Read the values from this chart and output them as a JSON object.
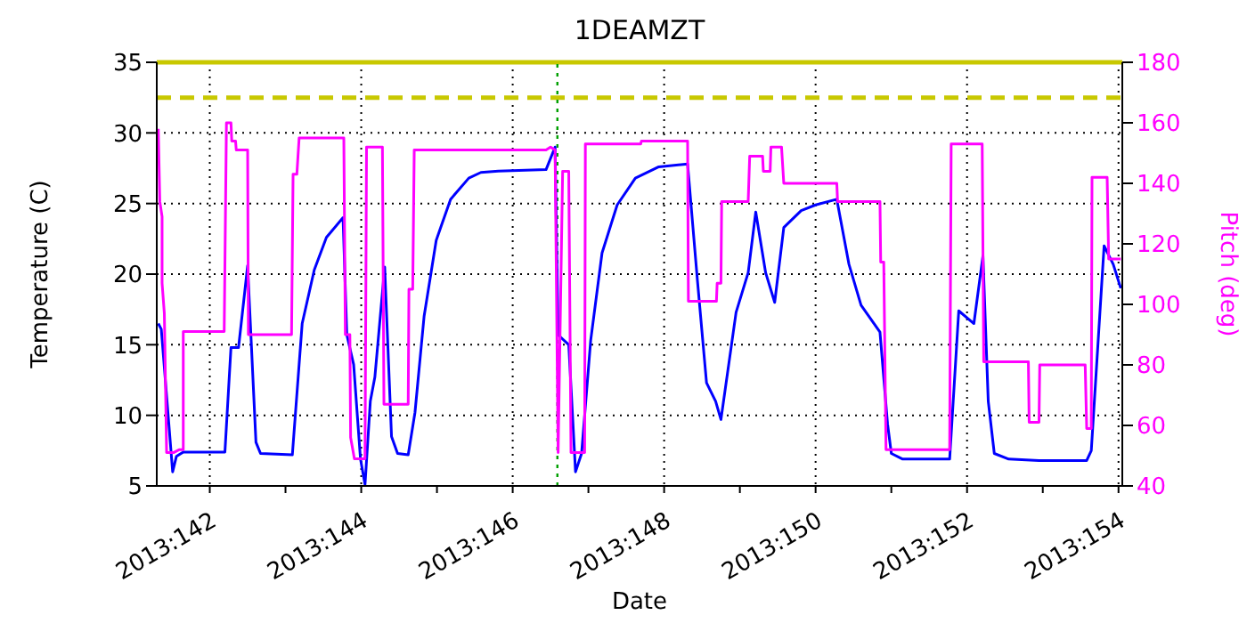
{
  "chart_data": {
    "type": "line",
    "title": "1DEAMZT",
    "xlabel": "Date",
    "ylabel": "Temperature (C)",
    "y2label": "Pitch (deg)",
    "xlim": [
      "2013-05-21T07:12",
      "2013-06-03T01:12"
    ],
    "xticks": [
      {
        "value": "2013-05-22",
        "label": "2013:142"
      },
      {
        "value": "2013-05-23",
        "label": null
      },
      {
        "value": "2013-05-24",
        "label": "2013:144"
      },
      {
        "value": "2013-05-25",
        "label": null
      },
      {
        "value": "2013-05-26",
        "label": "2013:146"
      },
      {
        "value": "2013-05-27",
        "label": null
      },
      {
        "value": "2013-05-28",
        "label": "2013:148"
      },
      {
        "value": "2013-05-29",
        "label": null
      },
      {
        "value": "2013-05-30",
        "label": "2013:150"
      },
      {
        "value": "2013-05-31",
        "label": null
      },
      {
        "value": "2013-06-01",
        "label": "2013:152"
      },
      {
        "value": "2013-06-02",
        "label": null
      },
      {
        "value": "2013-06-03",
        "label": "2013:154"
      }
    ],
    "ylim": [
      5,
      35
    ],
    "yticks": [
      5,
      10,
      15,
      20,
      25,
      30,
      35
    ],
    "y2lim": [
      40,
      180
    ],
    "y2ticks": [
      40,
      60,
      80,
      100,
      120,
      140,
      160,
      180
    ],
    "grid": true,
    "legend": false,
    "marker": "none",
    "line_style": "solid",
    "ref_lines": [
      {
        "axis": "y",
        "value": 35,
        "color": "#c8c800",
        "line_style": "solid"
      },
      {
        "axis": "y",
        "value": 32.5,
        "color": "#c8c800",
        "line_style": "dashed"
      },
      {
        "axis": "x",
        "value": "2013-05-26T14:10",
        "color": "#00a000",
        "line_style": "dotted"
      }
    ],
    "series": [
      {
        "color": "#0000ff",
        "x": [
          "2013-05-21T07:41",
          "2013-05-21T08:38",
          "2013-05-21T12:14",
          "2013-05-21T13:26",
          "2013-05-21T15:36",
          "2013-05-22T04:48",
          "2013-05-22T06:43",
          "2013-05-22T09:07",
          "2013-05-22T12:00",
          "2013-05-22T14:38",
          "2013-05-22T16:05",
          "2013-05-23T02:10",
          "2013-05-23T05:17",
          "2013-05-23T09:07",
          "2013-05-23T12:58",
          "2013-05-23T18:14",
          "2013-05-23T19:26",
          "2013-05-23T21:36",
          "2013-05-23T23:46",
          "2013-05-24T01:12",
          "2013-05-24T02:53",
          "2013-05-24T04:19",
          "2013-05-24T07:26",
          "2013-05-24T09:36",
          "2013-05-24T11:31",
          "2013-05-24T14:53",
          "2013-05-24T17:02",
          "2013-05-24T19:55",
          "2013-05-24T23:46",
          "2013-05-25T04:19",
          "2013-05-25T10:05",
          "2013-05-25T13:55",
          "2013-05-25T19:26",
          "2013-05-26T10:34",
          "2013-05-26T13:26",
          "2013-05-26T14:24",
          "2013-05-26T17:46",
          "2013-05-26T19:55",
          "2013-05-26T21:50",
          "2013-05-27T00:43",
          "2013-05-27T04:19",
          "2013-05-27T09:07",
          "2013-05-27T14:53",
          "2013-05-27T22:19",
          "2013-05-28T07:26",
          "2013-05-28T10:34",
          "2013-05-28T13:26",
          "2013-05-28T16:19",
          "2013-05-28T18:00",
          "2013-05-28T22:48",
          "2013-05-29T02:38",
          "2013-05-29T05:02",
          "2013-05-29T08:10",
          "2013-05-29T11:02",
          "2013-05-29T13:55",
          "2013-05-29T19:26",
          "2013-05-30T00:00",
          "2013-05-30T06:43",
          "2013-05-30T10:34",
          "2013-05-30T14:24",
          "2013-05-30T20:24",
          "2013-05-30T22:48",
          "2013-05-31T00:00",
          "2013-05-31T03:36",
          "2013-05-31T18:29",
          "2013-05-31T21:22",
          "2013-06-01T02:10",
          "2013-06-01T05:02",
          "2013-06-01T06:43",
          "2013-06-01T08:38",
          "2013-06-01T13:12",
          "2013-06-01T22:48",
          "2013-06-02T13:55",
          "2013-06-02T15:22",
          "2013-06-02T19:26",
          "2013-06-02T22:19",
          "2013-06-03T00:43"
        ],
        "values": [
          16.5,
          16.1,
          6.0,
          7.1,
          7.4,
          7.4,
          14.8,
          14.8,
          20.6,
          8.1,
          7.3,
          7.2,
          16.5,
          20.3,
          22.6,
          24.0,
          15.7,
          13.6,
          6.9,
          5.1,
          11.0,
          12.7,
          20.5,
          8.5,
          7.3,
          7.2,
          10.2,
          17.0,
          22.4,
          25.3,
          26.8,
          27.2,
          27.3,
          27.4,
          29.0,
          15.7,
          15.0,
          6.0,
          7.3,
          15.3,
          21.5,
          24.9,
          26.8,
          27.6,
          27.8,
          19.5,
          12.3,
          11.0,
          9.7,
          17.3,
          20.1,
          24.4,
          20.1,
          18.0,
          23.3,
          24.5,
          24.9,
          25.3,
          20.7,
          17.8,
          15.9,
          9.4,
          7.3,
          6.9,
          6.9,
          17.4,
          16.5,
          21.3,
          11.0,
          7.3,
          6.9,
          6.8,
          6.8,
          7.5,
          22.0,
          20.7,
          19.0
        ]
      },
      {
        "color": "#ff00ff",
        "axis": "y2",
        "x": [
          "2013-05-21T07:41",
          "2013-05-21T08:10",
          "2013-05-21T08:53",
          "2013-05-21T08:53",
          "2013-05-21T09:36",
          "2013-05-21T10:19",
          "2013-05-21T12:29",
          "2013-05-21T14:24",
          "2013-05-21T15:36",
          "2013-05-21T15:36",
          "2013-05-22T04:34",
          "2013-05-22T05:17",
          "2013-05-22T06:43",
          "2013-05-22T06:58",
          "2013-05-22T08:10",
          "2013-05-22T08:24",
          "2013-05-22T12:00",
          "2013-05-22T12:14",
          "2013-05-23T01:55",
          "2013-05-23T02:24",
          "2013-05-23T03:36",
          "2013-05-23T04:19",
          "2013-05-23T18:29",
          "2013-05-23T18:58",
          "2013-05-23T20:24",
          "2013-05-23T20:38",
          "2013-05-23T21:50",
          "2013-05-24T01:12",
          "2013-05-24T01:41",
          "2013-05-24T06:43",
          "2013-05-24T07:12",
          "2013-05-24T14:53",
          "2013-05-24T15:07",
          "2013-05-24T16:19",
          "2013-05-24T16:48",
          "2013-05-26T10:34",
          "2013-05-26T12:00",
          "2013-05-26T13:26",
          "2013-05-26T14:24",
          "2013-05-26T15:50",
          "2013-05-26T17:46",
          "2013-05-26T18:29",
          "2013-05-26T22:48",
          "2013-05-26T23:02",
          "2013-05-27T16:34",
          "2013-05-27T16:48",
          "2013-05-28T07:26",
          "2013-05-28T07:41",
          "2013-05-28T16:34",
          "2013-05-28T16:48",
          "2013-05-28T18:00",
          "2013-05-28T18:14",
          "2013-05-29T02:38",
          "2013-05-29T03:07",
          "2013-05-29T07:12",
          "2013-05-29T07:26",
          "2013-05-29T09:36",
          "2013-05-29T09:50",
          "2013-05-29T13:12",
          "2013-05-29T13:55",
          "2013-05-30T06:43",
          "2013-05-30T06:58",
          "2013-05-30T20:24",
          "2013-05-30T20:38",
          "2013-05-30T21:36",
          "2013-05-30T22:19",
          "2013-05-31T18:29",
          "2013-05-31T18:58",
          "2013-06-01T04:48",
          "2013-06-01T05:17",
          "2013-06-01T19:26",
          "2013-06-01T19:41",
          "2013-06-01T22:48",
          "2013-06-01T23:02",
          "2013-06-02T13:26",
          "2013-06-02T13:55",
          "2013-06-02T15:22",
          "2013-06-02T15:36",
          "2013-06-02T20:24",
          "2013-06-02T20:53",
          "2013-06-03T00:43"
        ],
        "values": [
          158,
          134,
          129,
          107,
          97,
          51,
          51,
          52,
          52,
          91,
          91,
          160,
          160,
          154,
          154,
          151,
          151,
          90,
          90,
          143,
          143,
          155,
          155,
          90,
          90,
          56,
          49,
          49,
          152,
          152,
          67,
          67,
          105,
          105,
          151,
          151,
          152,
          151,
          51,
          144,
          144,
          51,
          51,
          153,
          153,
          154,
          154,
          101,
          101,
          107,
          107,
          134,
          134,
          149,
          149,
          144,
          144,
          152,
          152,
          140,
          140,
          134,
          134,
          114,
          114,
          52,
          52,
          153,
          153,
          81,
          81,
          61,
          61,
          80,
          80,
          59,
          59,
          142,
          142,
          115,
          115
        ]
      }
    ]
  }
}
